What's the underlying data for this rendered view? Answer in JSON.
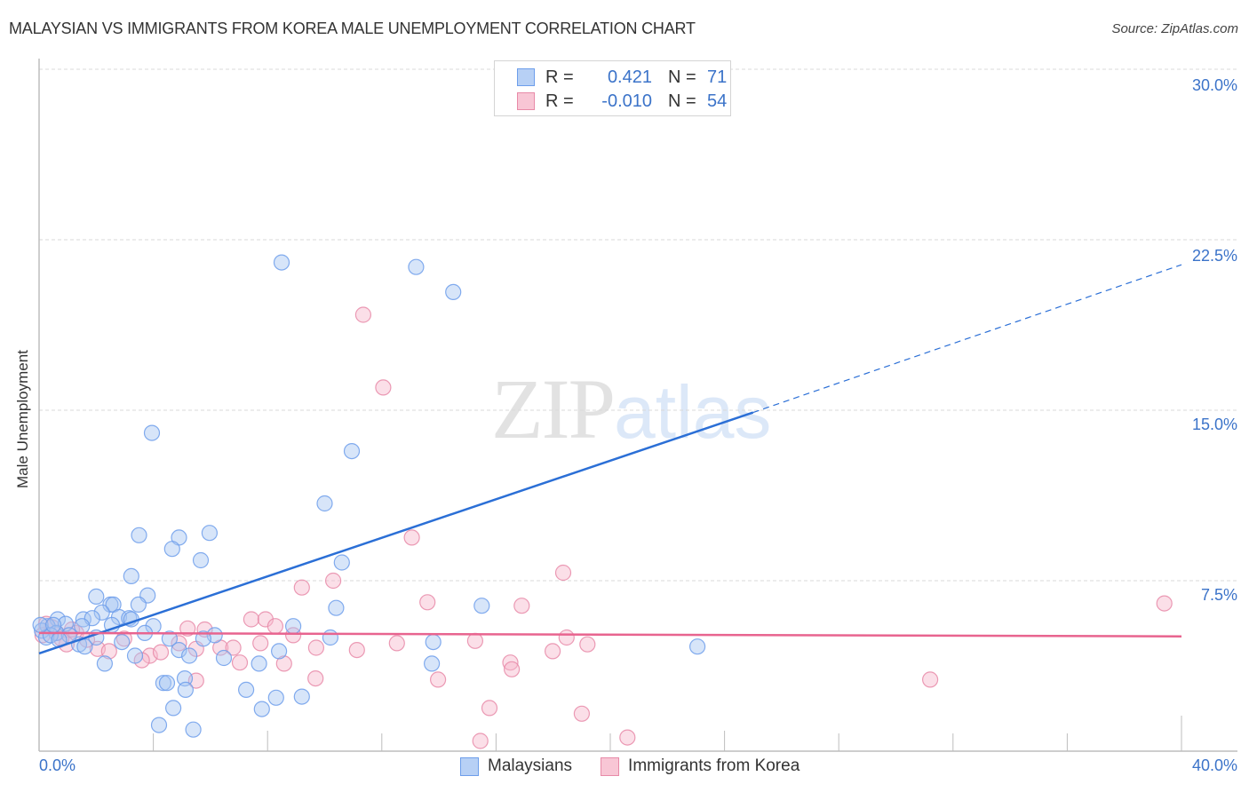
{
  "header": {
    "title": "MALAYSIAN VS IMMIGRANTS FROM KOREA MALE UNEMPLOYMENT CORRELATION CHART",
    "source": "Source: ZipAtlas.com"
  },
  "watermark": {
    "zip": "ZIP",
    "atlas": "atlas"
  },
  "legend": {
    "rows": [
      {
        "series": "Malaysians",
        "r_label": "R =",
        "r_value": "0.421",
        "n_label": "N =",
        "n_value": "71",
        "color": "#6d9eeb",
        "fill": "#b7d0f5"
      },
      {
        "series": "Immigrants from Korea",
        "r_label": "R =",
        "r_value": "-0.010",
        "n_label": "N =",
        "n_value": "54",
        "color": "#e88aa8",
        "fill": "#f8c6d5"
      }
    ]
  },
  "bottom_legend": {
    "items": [
      {
        "label": "Malaysians",
        "color": "#6d9eeb",
        "fill": "#b7d0f5"
      },
      {
        "label": "Immigrants from Korea",
        "color": "#e88aa8",
        "fill": "#f8c6d5"
      }
    ]
  },
  "axes": {
    "y_label": "Male Unemployment",
    "y_ticks": [
      "30.0%",
      "22.5%",
      "15.0%",
      "7.5%"
    ],
    "x_tick_left": "0.0%",
    "x_tick_right": "40.0%"
  },
  "chart_data": {
    "type": "scatter",
    "title": "MALAYSIAN VS IMMIGRANTS FROM KOREA MALE UNEMPLOYMENT CORRELATION CHART",
    "xlabel": "",
    "ylabel": "Male Unemployment",
    "xlim": [
      0,
      40
    ],
    "ylim": [
      0,
      30
    ],
    "x_ticks": [
      "0.0%",
      "40.0%"
    ],
    "y_ticks": [
      "7.5%",
      "15.0%",
      "22.5%",
      "30.0%"
    ],
    "grid": {
      "horizontal": true,
      "style": "dashed"
    },
    "legend_position": "top-center and bottom",
    "series": [
      {
        "name": "Malaysians",
        "color": "#6d9eeb",
        "R": 0.421,
        "N": 71,
        "trend": {
          "x0": 0,
          "y0": 4.3,
          "x1": 25,
          "y1": 14.9,
          "dashed_to_x": 40,
          "dashed_to_y": 21.4
        },
        "points": [
          [
            8.49,
            21.5
          ],
          [
            13.2,
            21.3
          ],
          [
            14.5,
            20.2
          ],
          [
            3.95,
            14.0
          ],
          [
            10.95,
            13.2
          ],
          [
            10.0,
            10.9
          ],
          [
            3.5,
            9.5
          ],
          [
            4.9,
            9.4
          ],
          [
            5.97,
            9.6
          ],
          [
            4.66,
            8.9
          ],
          [
            5.66,
            8.4
          ],
          [
            10.6,
            8.3
          ],
          [
            3.23,
            7.7
          ],
          [
            2.0,
            6.8
          ],
          [
            3.8,
            6.85
          ],
          [
            2.5,
            6.45
          ],
          [
            2.6,
            6.45
          ],
          [
            3.48,
            6.45
          ],
          [
            10.4,
            6.3
          ],
          [
            15.5,
            6.4
          ],
          [
            2.2,
            6.1
          ],
          [
            1.55,
            5.8
          ],
          [
            2.8,
            5.9
          ],
          [
            3.15,
            5.85
          ],
          [
            0.65,
            5.8
          ],
          [
            1.86,
            5.85
          ],
          [
            3.23,
            5.8
          ],
          [
            4.0,
            5.5
          ],
          [
            8.9,
            5.5
          ],
          [
            0.93,
            5.6
          ],
          [
            2.55,
            5.55
          ],
          [
            1.5,
            5.5
          ],
          [
            0.3,
            5.5
          ],
          [
            0.1,
            5.3
          ],
          [
            0.6,
            5.2
          ],
          [
            6.15,
            5.1
          ],
          [
            10.2,
            5.0
          ],
          [
            5.75,
            4.95
          ],
          [
            4.57,
            4.95
          ],
          [
            2.0,
            5.0
          ],
          [
            0.25,
            5.0
          ],
          [
            13.8,
            4.8
          ],
          [
            2.9,
            4.8
          ],
          [
            1.4,
            4.7
          ],
          [
            8.4,
            4.4
          ],
          [
            23.05,
            4.6
          ],
          [
            4.9,
            4.45
          ],
          [
            3.36,
            4.2
          ],
          [
            5.26,
            4.2
          ],
          [
            6.47,
            4.1
          ],
          [
            2.3,
            3.85
          ],
          [
            7.7,
            3.85
          ],
          [
            13.75,
            3.85
          ],
          [
            5.1,
            3.2
          ],
          [
            4.35,
            3.0
          ],
          [
            4.48,
            3.0
          ],
          [
            5.13,
            2.7
          ],
          [
            7.25,
            2.7
          ],
          [
            9.2,
            2.4
          ],
          [
            8.3,
            2.35
          ],
          [
            4.7,
            1.9
          ],
          [
            7.8,
            1.85
          ],
          [
            4.2,
            1.15
          ],
          [
            5.4,
            0.95
          ],
          [
            0.4,
            5.1
          ],
          [
            1.05,
            5.1
          ],
          [
            0.7,
            4.9
          ],
          [
            1.6,
            4.6
          ],
          [
            3.7,
            5.2
          ],
          [
            0.05,
            5.55
          ],
          [
            0.5,
            5.55
          ]
        ]
      },
      {
        "name": "Immigrants from Korea",
        "color": "#e88aa8",
        "R": -0.01,
        "N": 54,
        "trend": {
          "x0": 0,
          "y0": 5.2,
          "x1": 40,
          "y1": 5.05
        },
        "points": [
          [
            11.35,
            19.2
          ],
          [
            12.05,
            16.0
          ],
          [
            13.05,
            9.4
          ],
          [
            18.35,
            7.85
          ],
          [
            9.2,
            7.2
          ],
          [
            10.3,
            7.5
          ],
          [
            13.6,
            6.55
          ],
          [
            16.9,
            6.4
          ],
          [
            39.4,
            6.5
          ],
          [
            7.43,
            5.8
          ],
          [
            7.93,
            5.8
          ],
          [
            5.2,
            5.4
          ],
          [
            5.8,
            5.35
          ],
          [
            8.27,
            5.5
          ],
          [
            8.9,
            5.1
          ],
          [
            2.98,
            4.95
          ],
          [
            18.47,
            5.0
          ],
          [
            4.9,
            4.75
          ],
          [
            7.75,
            4.75
          ],
          [
            12.53,
            4.75
          ],
          [
            15.27,
            4.85
          ],
          [
            19.2,
            4.7
          ],
          [
            9.7,
            4.55
          ],
          [
            6.35,
            4.55
          ],
          [
            11.13,
            4.45
          ],
          [
            6.8,
            4.55
          ],
          [
            3.88,
            4.2
          ],
          [
            4.26,
            4.35
          ],
          [
            5.5,
            4.5
          ],
          [
            2.05,
            4.5
          ],
          [
            2.45,
            4.4
          ],
          [
            17.98,
            4.4
          ],
          [
            16.5,
            3.9
          ],
          [
            16.55,
            3.6
          ],
          [
            8.58,
            3.85
          ],
          [
            3.6,
            4.0
          ],
          [
            7.03,
            3.9
          ],
          [
            9.68,
            3.2
          ],
          [
            13.97,
            3.15
          ],
          [
            5.5,
            3.1
          ],
          [
            31.2,
            3.15
          ],
          [
            15.77,
            1.9
          ],
          [
            19.0,
            1.65
          ],
          [
            15.45,
            0.45
          ],
          [
            20.6,
            0.6
          ],
          [
            0.25,
            5.6
          ],
          [
            0.62,
            5.2
          ],
          [
            0.12,
            5.1
          ],
          [
            0.96,
            4.7
          ],
          [
            1.3,
            5.2
          ],
          [
            1.68,
            4.9
          ],
          [
            0.45,
            5.45
          ],
          [
            0.78,
            4.95
          ],
          [
            1.15,
            5.35
          ]
        ]
      }
    ]
  }
}
